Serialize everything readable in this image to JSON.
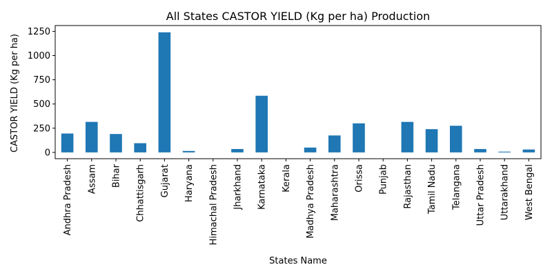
{
  "chart_data": {
    "type": "bar",
    "title": "All States CASTOR YIELD (Kg per ha) Production",
    "xlabel": "States Name",
    "ylabel": "CASTOR YIELD (Kg per ha)",
    "ylim": [
      -65,
      1310
    ],
    "yticks": [
      0,
      250,
      500,
      750,
      1000,
      1250
    ],
    "ytick_labels": [
      "0",
      "250",
      "500",
      "750",
      "1000",
      "1250"
    ],
    "grid": false,
    "legend": "none",
    "bar_color": "#1f77b4",
    "categories": [
      "Andhra Pradesh",
      "Assam",
      "Bihar",
      "Chhattisgarh",
      "Gujarat",
      "Haryana",
      "Himachal Pradesh",
      "Jharkhand",
      "Karnataka",
      "Kerala",
      "Madhya Pradesh",
      "Maharashtra",
      "Orissa",
      "Punjab",
      "Rajasthan",
      "Tamil Nadu",
      "Telangana",
      "Uttar Pradesh",
      "Uttarakhand",
      "West Bengal"
    ],
    "values": [
      195,
      315,
      190,
      95,
      1240,
      15,
      0,
      35,
      585,
      0,
      50,
      175,
      300,
      0,
      315,
      240,
      275,
      35,
      8,
      30
    ]
  }
}
